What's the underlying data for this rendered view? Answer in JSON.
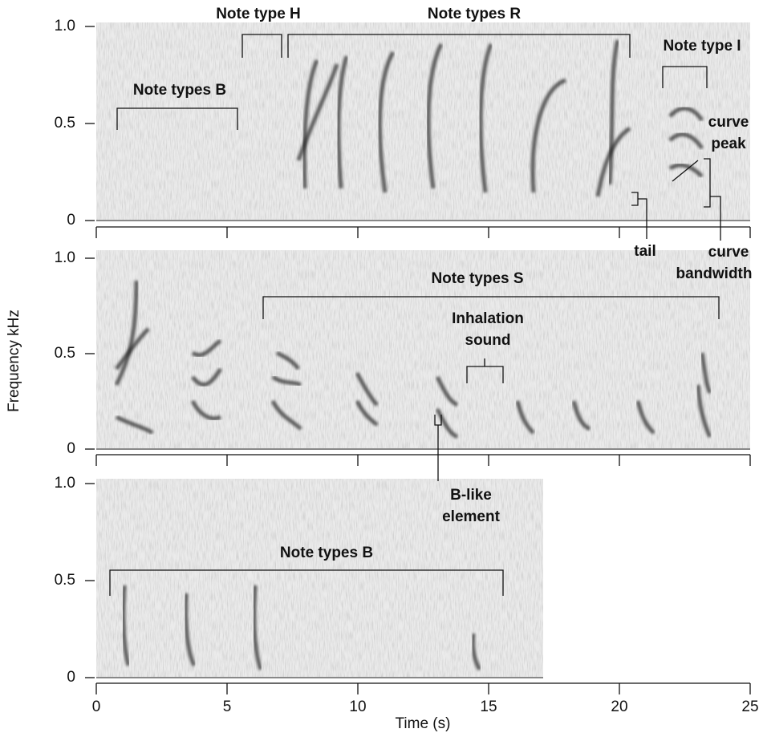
{
  "chart_data": [
    {
      "type": "spectrogram",
      "xlim": [
        0,
        25
      ],
      "ylim": [
        0,
        1
      ],
      "yticks": [
        {
          "value": 1.0,
          "label": "1.0"
        },
        0.5,
        0
      ],
      "annotations": [
        "Note type H",
        "Note types R",
        "Note types B",
        "Note type I",
        "curve",
        "peak",
        "tail",
        "curve",
        "bandwidth"
      ]
    },
    {
      "type": "spectrogram",
      "xlim": [
        0,
        25
      ],
      "ylim": [
        0,
        1
      ],
      "yticks": [
        {
          "value": 1.0,
          "label": "1.0"
        },
        0.5,
        0
      ],
      "ylabel": "Frequency kHz",
      "annotations": [
        "Note types S",
        "Inhalation",
        "sound",
        "B-like",
        "element"
      ]
    },
    {
      "type": "spectrogram",
      "xlim": [
        0,
        25
      ],
      "ylim": [
        0,
        1
      ],
      "yticks": [
        {
          "value": 1.0,
          "label": "1.0"
        },
        0.5,
        0
      ],
      "xticks": [
        0,
        5,
        10,
        15,
        20,
        25
      ],
      "xlabel": "Time (s)",
      "annotations": [
        "Note types B"
      ]
    }
  ]
}
